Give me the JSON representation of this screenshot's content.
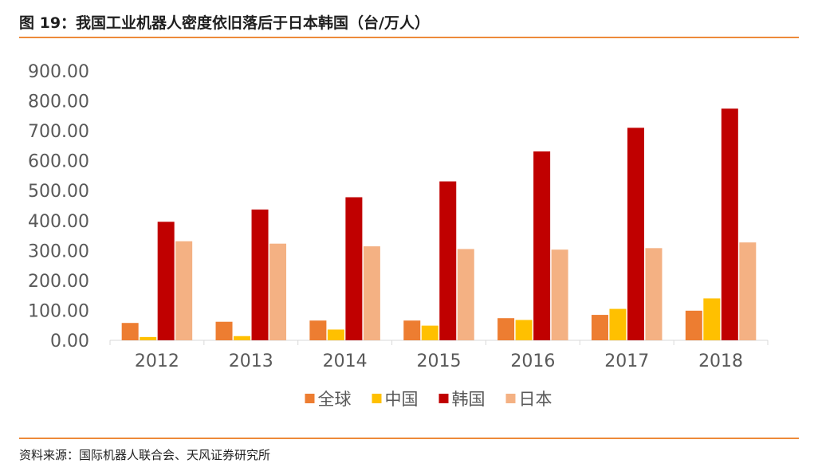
{
  "header": {
    "title": "图 19：我国工业机器人密度依旧落后于日本韩国（台/万人）"
  },
  "footer": {
    "source": "资料来源：国际机器人联合会、天风证券研究所"
  },
  "chart_data": {
    "type": "bar",
    "title": "我国工业机器人密度依旧落后于日本韩国（台/万人）",
    "xlabel": "",
    "ylabel": "",
    "categories": [
      "2012",
      "2013",
      "2014",
      "2015",
      "2016",
      "2017",
      "2018"
    ],
    "ylim": [
      0,
      900
    ],
    "yticks": [
      0,
      100,
      200,
      300,
      400,
      500,
      600,
      700,
      800,
      900
    ],
    "ytick_labels": [
      "0.00",
      "100.00",
      "200.00",
      "300.00",
      "400.00",
      "500.00",
      "600.00",
      "700.00",
      "800.00",
      "900.00"
    ],
    "grid": false,
    "legend_position": "bottom",
    "series": [
      {
        "name": "全球",
        "color": "#ed7d31",
        "values": [
          58,
          62,
          66,
          66,
          74,
          85,
          99
        ]
      },
      {
        "name": "中国",
        "color": "#ffc000",
        "values": [
          11,
          14,
          36,
          49,
          68,
          105,
          140
        ]
      },
      {
        "name": "韩国",
        "color": "#c00000",
        "values": [
          396,
          437,
          478,
          531,
          631,
          710,
          774
        ]
      },
      {
        "name": "日本",
        "color": "#f4b183",
        "values": [
          331,
          323,
          314,
          305,
          303,
          308,
          327
        ]
      }
    ]
  }
}
